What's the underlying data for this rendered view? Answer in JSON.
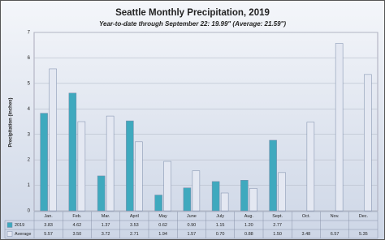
{
  "chart_data": {
    "type": "bar",
    "title": "Seattle Monthly Precipitation, 2019",
    "subtitle": "Year-to-date through September 22: 19.99\" (Average: 21.59\")",
    "y_label": "Precipitation (inches)",
    "categories": [
      "Jan.",
      "Feb.",
      "Mar.",
      "April",
      "May",
      "June",
      "July",
      "Aug.",
      "Sept.",
      "Oct.",
      "Nov.",
      "Dec."
    ],
    "series": [
      {
        "name": "2019",
        "color": "#3fa9be",
        "values": [
          3.83,
          4.62,
          1.37,
          3.53,
          0.62,
          0.9,
          1.15,
          1.2,
          2.77,
          null,
          null,
          null
        ],
        "value_labels": [
          "3.83",
          "4.62",
          "1.37",
          "3.53",
          "0.62",
          "0.90",
          "1.15",
          "1.20",
          "2.77",
          null,
          null,
          null
        ]
      },
      {
        "name": "Average",
        "color": "#e4e8f2",
        "values": [
          5.57,
          3.5,
          3.72,
          2.71,
          1.94,
          1.57,
          0.7,
          0.88,
          1.5,
          3.48,
          6.57,
          5.35
        ],
        "value_labels": [
          "5.57",
          "3.50",
          "3.72",
          "2.71",
          "1.94",
          "1.57",
          "0.70",
          "0.88",
          "1.50",
          "3.48",
          "6.57",
          "5.35"
        ]
      }
    ],
    "ylim": [
      0,
      7
    ],
    "yticks": [
      0,
      1,
      2,
      3,
      4,
      5,
      6,
      7
    ],
    "grid": true
  }
}
